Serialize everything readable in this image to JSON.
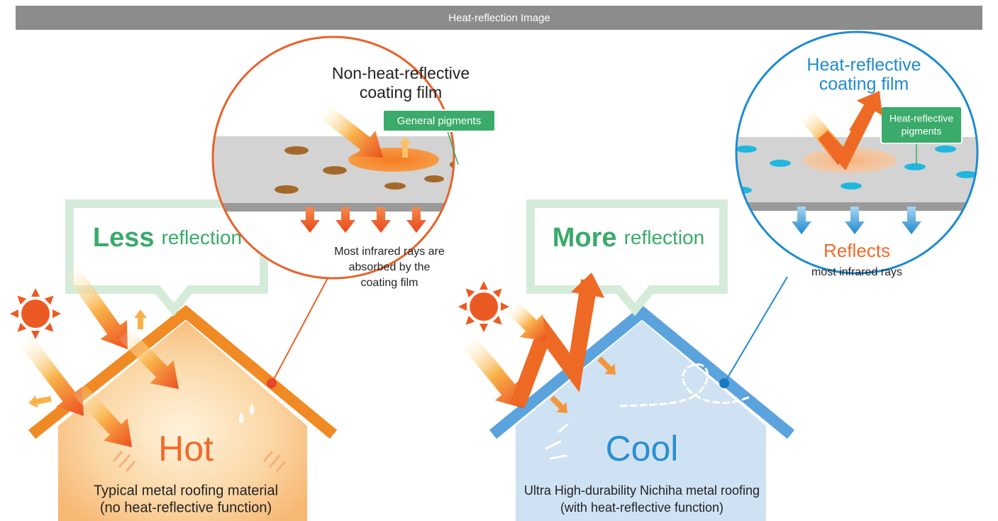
{
  "header": {
    "title": "Heat-reflection Image"
  },
  "panels": [
    {
      "callout": {
        "emphasis": "Less",
        "text": "reflection"
      },
      "zoom": {
        "title": [
          "Non-heat-reflective",
          "coating film"
        ],
        "pigment_label": [
          "General pigments"
        ],
        "caption": [
          "Most infrared rays are",
          "absorbed by the",
          "coating film"
        ]
      },
      "house": {
        "label": "Hot",
        "caption": [
          "Typical metal roofing material",
          "(no heat-reflective function)"
        ]
      }
    },
    {
      "callout": {
        "emphasis": "More",
        "text": "reflection"
      },
      "zoom": {
        "title": [
          "Heat-reflective",
          "coating film"
        ],
        "pigment_label": [
          "Heat-reflective",
          "pigments"
        ],
        "caption": [
          "Reflects",
          "most infrared rays"
        ]
      },
      "house": {
        "label": "Cool",
        "caption": [
          "Ultra High-durability Nichiha metal roofing",
          "(with heat-reflective function)"
        ]
      }
    }
  ]
}
